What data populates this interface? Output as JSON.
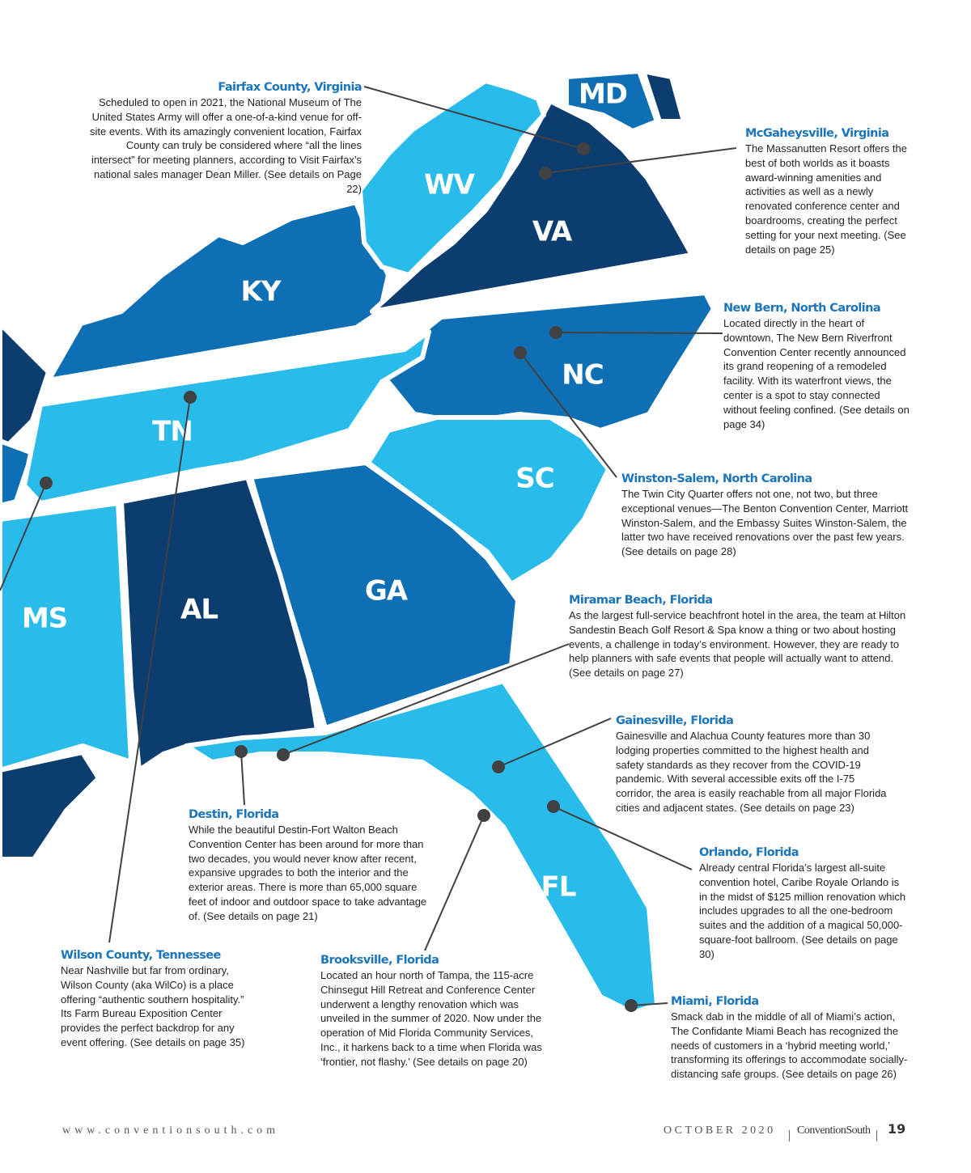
{
  "states": [
    {
      "label": "MD"
    },
    {
      "label": "WV"
    },
    {
      "label": "VA"
    },
    {
      "label": "KY"
    },
    {
      "label": "NC"
    },
    {
      "label": "TN"
    },
    {
      "label": "SC"
    },
    {
      "label": "GA"
    },
    {
      "label": "AL"
    },
    {
      "label": "MS"
    },
    {
      "label": "FL"
    }
  ],
  "callouts": [
    {
      "title": "Fairfax County, Virginia",
      "text": "Scheduled to open in 2021, the National Museum of The United States Army will offer a one-of-a-kind venue for off-site events. With its amazingly convenient location, Fairfax County can truly be considered where “all the lines intersect” for meeting planners, according to Visit Fairfax’s national sales manager Dean Miller. (See details on Page 22)"
    },
    {
      "title": "McGaheysville, Virginia",
      "text": "The Massanutten Resort offers the best of both worlds as it boasts award-winning amenities and activities as well as a newly renovated conference center and boardrooms, creating the perfect setting for your next meeting. (See details on page 25)"
    },
    {
      "title": "New Bern, North Carolina",
      "text": "Located directly in the heart of downtown, The New Bern Riverfront Convention Center recently announced its grand reopening of a remodeled facility. With its waterfront views, the center is a spot to stay connected without feeling confined. (See details on page 34)"
    },
    {
      "title": "Winston-Salem, North Carolina",
      "text": "The Twin City Quarter offers not one, not two, but three exceptional venues—The Benton Convention Center, Marriott Winston-Salem, and the Embassy Suites Winston-Salem, the latter two have received renovations over the past few years.  (See details on page 28)"
    },
    {
      "title": "Miramar Beach, Florida",
      "text": "As the largest full-service beachfront hotel in the area, the team at Hilton Sandestin Beach Golf Resort & Spa know a thing or two about hosting events, a challenge in today’s environment. However, they are ready to help planners with safe events that people will actually want to attend. (See details on page 27)"
    },
    {
      "title": "Gainesville, Florida",
      "text": "Gainesville and Alachua County features more than 30 lodging properties committed to the highest health and safety standards as they recover from the COVID-19 pandemic. With several accessible exits off the I-75 corridor, the area is easily reachable from all major Florida cities and adjacent states. (See details on page 23)"
    },
    {
      "title": "Destin, Florida",
      "text": "While the beautiful Destin-Fort Walton Beach Convention Center has been around for more than two decades, you would never know after recent, expansive upgrades to both the interior and the exterior areas. There is more than 65,000 square feet of indoor and outdoor space to take advantage of. (See details on page 21)"
    },
    {
      "title": "Orlando, Florida",
      "text": "Already central Florida’s largest all-suite convention hotel, Caribe Royale Orlando is in the midst of $125 million renovation which includes upgrades to all the one-bedroom suites and the addition of a magical 50,000-square-foot ballroom. (See details on page 30)"
    },
    {
      "title": "Miami, Florida",
      "text": "Smack dab in the middle of all of Miami’s action, The Confidante Miami Beach has recognized the needs of customers in a ‘hybrid meeting world,’ transforming its offerings to accommodate socially-distancing safe groups. (See details on page 26)"
    },
    {
      "title": "Wilson County, Tennessee",
      "text": "Near Nashville but far from ordinary, Wilson County (aka WilCo) is a place offering “authentic southern hospitality.” Its Farm Bureau Exposition Center provides the perfect backdrop for any event offering. (See details on page 35)"
    },
    {
      "title": "Brooksville, Florida",
      "text": "Located an hour north of Tampa, the 115-acre Chinsegut Hill Retreat and Conference Center underwent a lengthy renovation which was unveiled in the summer of 2020. Now under the operation of Mid Florida Community Services, Inc., it harkens back to a time when Florida was ‘frontier, not flashy.’ (See details on page 20)"
    }
  ],
  "footer": {
    "website": "www.conventionsouth.com",
    "issue": "OCTOBER 2020",
    "magazine": "ConventionSouth",
    "page": "19"
  }
}
